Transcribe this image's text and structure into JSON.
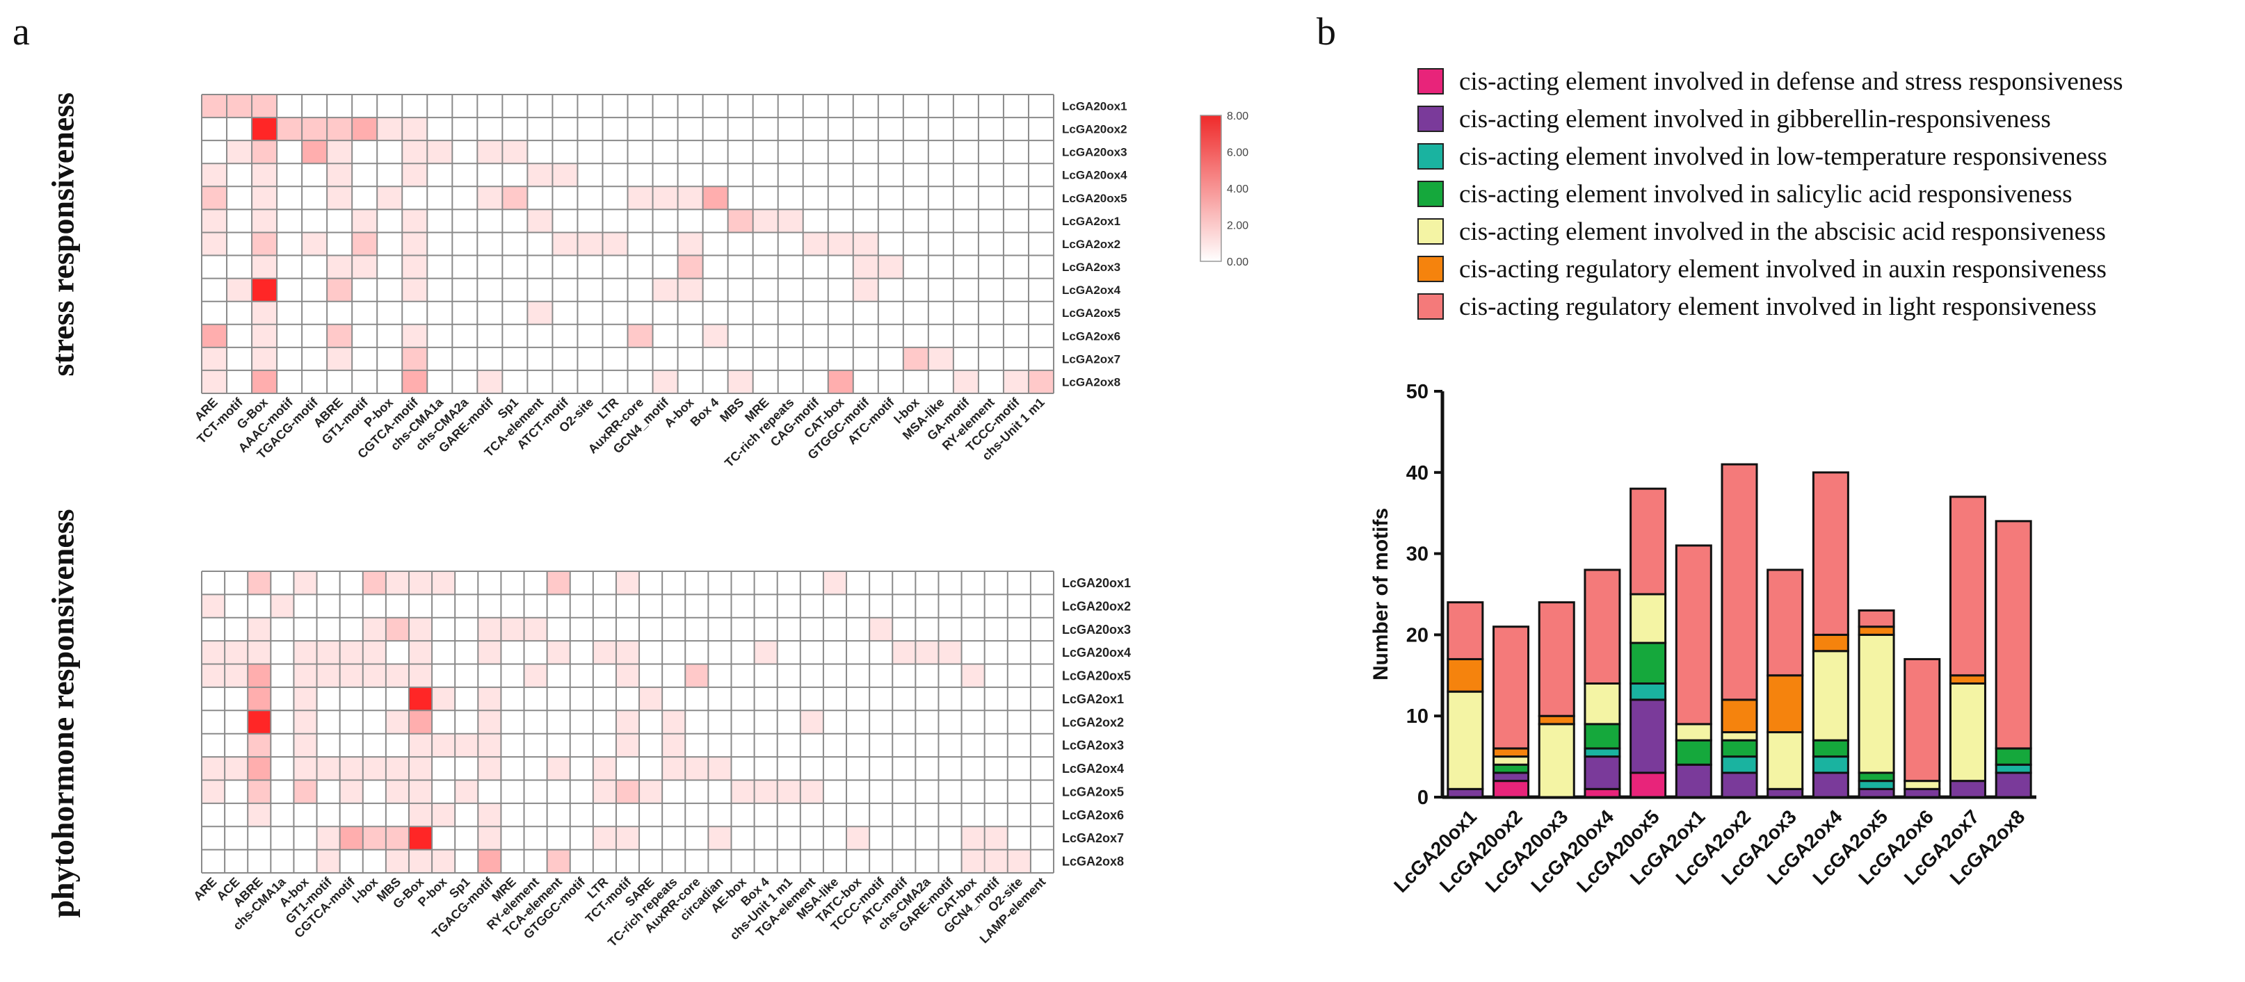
{
  "panels": {
    "a": "a",
    "b": "b"
  },
  "chart_data": [
    {
      "type": "heatmap",
      "panel": "a",
      "title": "stress responsiveness",
      "rows": [
        "LcGA20ox1",
        "LcGA20ox2",
        "LcGA20ox3",
        "LcGA20ox4",
        "LcGA20ox5",
        "LcGA2ox1",
        "LcGA2ox2",
        "LcGA2ox3",
        "LcGA2ox4",
        "LcGA2ox5",
        "LcGA2ox6",
        "LcGA2ox7",
        "LcGA2ox8"
      ],
      "columns": [
        "ARE",
        "TCT-motif",
        "G-Box",
        "AAAC-motif",
        "TGACG-motif",
        "ABRE",
        "GT1-motif",
        "P-box",
        "CGTCA-motif",
        "chs-CMA1a",
        "chs-CMA2a",
        "GARE-motif",
        "Sp1",
        "TCA-element",
        "ATCT-motif",
        "O2-site",
        "LTR",
        "AuxRR-core",
        "GCN4_motif",
        "A-box",
        "Box 4",
        "MBS",
        "MRE",
        "TC-rich repeats",
        "CAG-motif",
        "CAT-box",
        "GTGGC-motif",
        "ATC-motif",
        "I-box",
        "MSA-like",
        "GA-motif",
        "RY-element",
        "TCCC-motif",
        "chs-Unit 1 m1"
      ],
      "values": [
        [
          2,
          2,
          2,
          0,
          0,
          0,
          0,
          0,
          0,
          0,
          0,
          0,
          0,
          0,
          0,
          0,
          0,
          0,
          0,
          0,
          0,
          0,
          0,
          0,
          0,
          0,
          0,
          0,
          0,
          0,
          0,
          0,
          0,
          0
        ],
        [
          0,
          0,
          8,
          2,
          2,
          2,
          3,
          1,
          1,
          0,
          0,
          0,
          0,
          0,
          0,
          0,
          0,
          0,
          0,
          0,
          0,
          0,
          0,
          0,
          0,
          0,
          0,
          0,
          0,
          0,
          0,
          0,
          0,
          0
        ],
        [
          0,
          1,
          2,
          0,
          3,
          1,
          0,
          0,
          1,
          1,
          0,
          1,
          1,
          0,
          0,
          0,
          0,
          0,
          0,
          0,
          0,
          0,
          0,
          0,
          0,
          0,
          0,
          0,
          0,
          0,
          0,
          0,
          0,
          0
        ],
        [
          1,
          0,
          1,
          0,
          0,
          1,
          0,
          0,
          1,
          0,
          0,
          0,
          0,
          1,
          1,
          0,
          0,
          0,
          0,
          0,
          0,
          0,
          0,
          0,
          0,
          0,
          0,
          0,
          0,
          0,
          0,
          0,
          0,
          0
        ],
        [
          2,
          0,
          1,
          0,
          0,
          1,
          0,
          1,
          0,
          0,
          0,
          1,
          2,
          0,
          0,
          0,
          0,
          1,
          1,
          1,
          3,
          0,
          0,
          0,
          0,
          0,
          0,
          0,
          0,
          0,
          0,
          0,
          0,
          0
        ],
        [
          1,
          0,
          1,
          0,
          0,
          0,
          1,
          0,
          1,
          0,
          0,
          0,
          0,
          1,
          0,
          0,
          0,
          0,
          0,
          0,
          0,
          2,
          1,
          1,
          0,
          0,
          0,
          0,
          0,
          0,
          0,
          0,
          0,
          0
        ],
        [
          1,
          0,
          2,
          0,
          1,
          0,
          2,
          0,
          1,
          0,
          0,
          0,
          0,
          0,
          1,
          1,
          1,
          0,
          0,
          1,
          0,
          0,
          0,
          0,
          1,
          1,
          1,
          0,
          0,
          0,
          0,
          0,
          0,
          0
        ],
        [
          0,
          0,
          1,
          0,
          0,
          1,
          1,
          0,
          1,
          0,
          0,
          0,
          0,
          0,
          0,
          0,
          0,
          0,
          0,
          2,
          0,
          0,
          0,
          0,
          0,
          0,
          1,
          1,
          0,
          0,
          0,
          0,
          0,
          0
        ],
        [
          0,
          1,
          8,
          0,
          0,
          2,
          0,
          0,
          1,
          0,
          0,
          0,
          0,
          0,
          0,
          0,
          0,
          0,
          1,
          1,
          0,
          0,
          0,
          0,
          0,
          0,
          1,
          0,
          0,
          0,
          0,
          0,
          0,
          0
        ],
        [
          0,
          0,
          1,
          0,
          0,
          0,
          0,
          0,
          0,
          0,
          0,
          0,
          0,
          1,
          0,
          0,
          0,
          0,
          0,
          0,
          0,
          0,
          0,
          0,
          0,
          0,
          0,
          0,
          0,
          0,
          0,
          0,
          0,
          0
        ],
        [
          3,
          0,
          1,
          0,
          0,
          2,
          0,
          0,
          1,
          0,
          0,
          0,
          0,
          0,
          0,
          0,
          0,
          2,
          0,
          0,
          1,
          0,
          0,
          0,
          0,
          0,
          0,
          0,
          0,
          0,
          0,
          0,
          0,
          0
        ],
        [
          1,
          0,
          1,
          0,
          0,
          1,
          0,
          0,
          2,
          0,
          0,
          0,
          0,
          0,
          0,
          0,
          0,
          0,
          0,
          0,
          0,
          0,
          0,
          0,
          0,
          0,
          0,
          0,
          2,
          1,
          0,
          0,
          0,
          0
        ],
        [
          1,
          0,
          3,
          0,
          0,
          0,
          0,
          0,
          3,
          0,
          0,
          1,
          0,
          0,
          0,
          0,
          0,
          0,
          1,
          0,
          0,
          1,
          0,
          0,
          0,
          3,
          0,
          0,
          0,
          0,
          1,
          0,
          1,
          2
        ]
      ],
      "colorbar": {
        "min": 0,
        "max": 8,
        "ticks": [
          "0.00",
          "2.00",
          "4.00",
          "6.00",
          "8.00"
        ]
      }
    },
    {
      "type": "heatmap",
      "panel": "a",
      "title": "phytohormone responsiveness",
      "rows": [
        "LcGA20ox1",
        "LcGA20ox2",
        "LcGA20ox3",
        "LcGA20ox4",
        "LcGA20ox5",
        "LcGA2ox1",
        "LcGA2ox2",
        "LcGA2ox3",
        "LcGA2ox4",
        "LcGA2ox5",
        "LcGA2ox6",
        "LcGA2ox7",
        "LcGA2ox8"
      ],
      "columns": [
        "ARE",
        "ACE",
        "ABRE",
        "chs-CMA1a",
        "A-box",
        "GT1-motif",
        "CGTCA-motif",
        "I-box",
        "MBS",
        "G-Box",
        "P-box",
        "Sp1",
        "TGACG-motif",
        "MRE",
        "RY-element",
        "TCA-element",
        "GTGGC-motif",
        "LTR",
        "TCT-motif",
        "SARE",
        "TC-rich repeats",
        "AuxRR-core",
        "circadian",
        "AE-box",
        "Box 4",
        "chs-Unit 1 m1",
        "TGA-element",
        "MSA-like",
        "TATC-box",
        "TCCC-motif",
        "ATC-motif",
        "chs-CMA2a",
        "GARE-motif",
        "CAT-box",
        "GCN4_motif",
        "O2-site",
        "LAMP-element"
      ],
      "values": [
        [
          0,
          0,
          2,
          0,
          1,
          0,
          0,
          2,
          1,
          1,
          1,
          0,
          0,
          0,
          0,
          2,
          0,
          0,
          1,
          0,
          0,
          0,
          0,
          0,
          0,
          0,
          0,
          1,
          0,
          0,
          0,
          0,
          0,
          0,
          0,
          0,
          0
        ],
        [
          1,
          0,
          0,
          1,
          0,
          0,
          0,
          0,
          0,
          0,
          0,
          0,
          0,
          0,
          0,
          0,
          0,
          0,
          0,
          0,
          0,
          0,
          0,
          0,
          0,
          0,
          0,
          0,
          0,
          0,
          0,
          0,
          0,
          0,
          0,
          0,
          0
        ],
        [
          0,
          0,
          1,
          0,
          0,
          0,
          0,
          1,
          2,
          1,
          0,
          0,
          1,
          1,
          1,
          0,
          0,
          0,
          0,
          0,
          0,
          0,
          0,
          0,
          0,
          0,
          0,
          0,
          0,
          1,
          0,
          0,
          0,
          0,
          0,
          0,
          0
        ],
        [
          1,
          1,
          1,
          0,
          1,
          1,
          1,
          1,
          0,
          1,
          0,
          0,
          1,
          0,
          0,
          1,
          0,
          1,
          1,
          0,
          0,
          0,
          0,
          0,
          1,
          0,
          0,
          0,
          0,
          0,
          1,
          1,
          1,
          0,
          0,
          0,
          0
        ],
        [
          1,
          1,
          3,
          0,
          1,
          1,
          1,
          1,
          1,
          1,
          0,
          0,
          0,
          0,
          1,
          0,
          0,
          0,
          1,
          0,
          0,
          2,
          0,
          0,
          0,
          0,
          0,
          0,
          0,
          0,
          0,
          0,
          0,
          1,
          0,
          0,
          0
        ],
        [
          0,
          0,
          3,
          0,
          1,
          0,
          0,
          0,
          0,
          8,
          1,
          0,
          1,
          0,
          0,
          0,
          0,
          0,
          0,
          1,
          0,
          0,
          0,
          0,
          0,
          0,
          0,
          0,
          0,
          0,
          0,
          0,
          0,
          0,
          0,
          0,
          0
        ],
        [
          0,
          0,
          8,
          0,
          1,
          0,
          0,
          0,
          1,
          3,
          0,
          0,
          1,
          0,
          0,
          0,
          0,
          0,
          1,
          0,
          1,
          0,
          0,
          0,
          0,
          0,
          1,
          0,
          0,
          0,
          0,
          0,
          0,
          0,
          0,
          0,
          0
        ],
        [
          0,
          0,
          2,
          0,
          1,
          0,
          0,
          0,
          0,
          1,
          1,
          1,
          1,
          0,
          0,
          0,
          0,
          0,
          1,
          0,
          1,
          0,
          0,
          0,
          0,
          0,
          0,
          0,
          0,
          0,
          0,
          0,
          0,
          0,
          0,
          0,
          0
        ],
        [
          1,
          1,
          3,
          0,
          1,
          1,
          1,
          1,
          1,
          1,
          0,
          0,
          1,
          0,
          0,
          1,
          0,
          1,
          0,
          0,
          1,
          1,
          1,
          0,
          0,
          0,
          0,
          0,
          0,
          0,
          0,
          0,
          0,
          0,
          0,
          0,
          0
        ],
        [
          1,
          0,
          2,
          0,
          2,
          0,
          1,
          0,
          1,
          1,
          0,
          1,
          0,
          0,
          0,
          0,
          0,
          1,
          2,
          1,
          0,
          0,
          0,
          1,
          1,
          1,
          1,
          0,
          0,
          0,
          0,
          0,
          0,
          0,
          0,
          0,
          0
        ],
        [
          0,
          0,
          1,
          0,
          0,
          0,
          0,
          0,
          0,
          1,
          1,
          0,
          1,
          0,
          0,
          0,
          0,
          0,
          0,
          0,
          0,
          0,
          0,
          0,
          0,
          0,
          0,
          0,
          0,
          0,
          0,
          0,
          0,
          0,
          0,
          0,
          0
        ],
        [
          0,
          0,
          0,
          0,
          0,
          1,
          3,
          2,
          2,
          8,
          0,
          0,
          1,
          0,
          0,
          0,
          0,
          1,
          1,
          0,
          0,
          0,
          1,
          0,
          0,
          0,
          0,
          0,
          1,
          0,
          0,
          0,
          0,
          1,
          1,
          0,
          0
        ],
        [
          0,
          0,
          0,
          0,
          0,
          1,
          0,
          0,
          1,
          1,
          1,
          0,
          3,
          0,
          0,
          2,
          0,
          0,
          0,
          0,
          0,
          0,
          0,
          0,
          0,
          0,
          0,
          0,
          0,
          0,
          0,
          0,
          0,
          1,
          1,
          1,
          0
        ]
      ],
      "colorbar": {
        "min": 0,
        "max": 8
      }
    },
    {
      "type": "bar",
      "stacked": true,
      "panel": "b",
      "title": "",
      "xlabel": "",
      "ylabel": "Number of motifs",
      "ylim": [
        0,
        50
      ],
      "yticks": [
        0,
        10,
        20,
        30,
        40,
        50
      ],
      "categories": [
        "LcGA20ox1",
        "LcGA20ox2",
        "LcGA20ox3",
        "LcGA20ox4",
        "LcGA20ox5",
        "LcGA2ox1",
        "LcGA2ox2",
        "LcGA2ox3",
        "LcGA2ox4",
        "LcGA2ox5",
        "LcGA2ox6",
        "LcGA2ox7",
        "LcGA2ox8"
      ],
      "series": [
        {
          "name": "cis-acting element involved in defense and stress responsiveness",
          "color": "#e8247a",
          "values": [
            0,
            2,
            0,
            1,
            3,
            0,
            0,
            0,
            0,
            0,
            0,
            0,
            0
          ]
        },
        {
          "name": "cis-acting element involved in gibberellin-responsiveness",
          "color": "#7a3a9a",
          "values": [
            1,
            1,
            0,
            4,
            9,
            4,
            3,
            1,
            3,
            1,
            1,
            2,
            3
          ]
        },
        {
          "name": "cis-acting element involved in low-temperature responsiveness",
          "color": "#1ab3a0",
          "values": [
            0,
            0,
            0,
            1,
            2,
            0,
            2,
            0,
            2,
            1,
            0,
            0,
            1
          ]
        },
        {
          "name": "cis-acting element involved in salicylic acid responsiveness",
          "color": "#15a83c",
          "values": [
            0,
            1,
            0,
            3,
            5,
            3,
            2,
            0,
            2,
            1,
            0,
            0,
            2
          ]
        },
        {
          "name": "cis-acting element involved in the abscisic acid responsiveness",
          "color": "#f4f4a4",
          "values": [
            12,
            1,
            9,
            5,
            6,
            2,
            1,
            7,
            11,
            17,
            1,
            12,
            0
          ]
        },
        {
          "name": "cis-acting regulatory element involved in auxin responsiveness",
          "color": "#f5830d",
          "values": [
            4,
            1,
            1,
            0,
            0,
            0,
            4,
            7,
            2,
            1,
            0,
            1,
            0
          ]
        },
        {
          "name": "cis-acting regulatory element involved in light responsiveness",
          "color": "#f47a7a",
          "values": [
            7,
            15,
            14,
            14,
            13,
            22,
            29,
            13,
            20,
            2,
            15,
            22,
            28
          ]
        }
      ]
    }
  ]
}
